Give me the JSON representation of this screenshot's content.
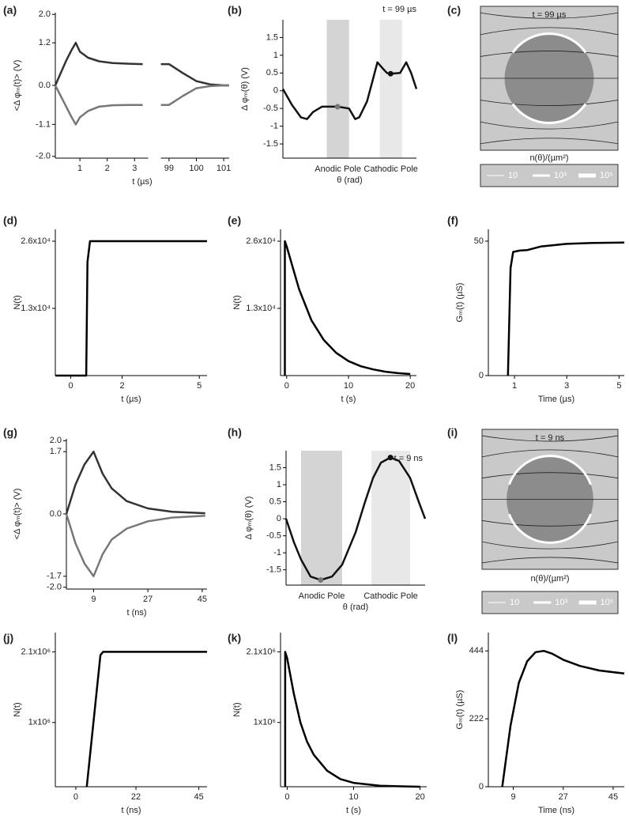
{
  "chart_data": [
    {
      "label": "(a)",
      "type": "line",
      "x": [
        0.1,
        0.3,
        0.5,
        0.7,
        0.85,
        1.0,
        1.3,
        1.7,
        2.2,
        2.8,
        3.3,
        98.7,
        99,
        99.5,
        100,
        100.5,
        101,
        101.2
      ],
      "series": [
        {
          "color": "#333333",
          "values": [
            0,
            0.35,
            0.7,
            1.0,
            1.2,
            0.95,
            0.78,
            0.68,
            0.63,
            0.61,
            0.6,
            0.6,
            0.6,
            0.35,
            0.12,
            0.03,
            0,
            0
          ]
        },
        {
          "color": "#777777",
          "values": [
            0,
            -0.3,
            -0.6,
            -0.9,
            -1.1,
            -0.9,
            -0.72,
            -0.6,
            -0.56,
            -0.55,
            -0.55,
            -0.55,
            -0.55,
            -0.3,
            -0.08,
            -0.02,
            0,
            0
          ]
        }
      ],
      "xlim": [
        [
          0.1,
          3.5
        ],
        [
          98.7,
          101.2
        ]
      ],
      "ylim": [
        -2.05,
        2.05
      ],
      "xticks": [
        1,
        2,
        3,
        99,
        100,
        101
      ],
      "yticks": [
        {
          "value": 2,
          "label": "2.0"
        },
        1.2,
        {
          "value": 0,
          "label": "0.0"
        },
        -1.1,
        {
          "value": -2,
          "label": "-2.0"
        }
      ],
      "xlabel": "t (µs)",
      "ylabel": "<Δ φₘ(t)> (V)"
    },
    {
      "label": "(b)",
      "type": "line",
      "x": [
        0,
        0.43,
        0.85,
        1.14,
        1.42,
        1.84,
        2.58,
        3.12,
        3.41,
        3.6,
        3.97,
        4.26,
        4.46,
        4.68,
        4.91,
        5.08,
        5.53,
        5.82,
        6.05,
        6.3
      ],
      "series": [
        {
          "color": "#111111",
          "values": [
            0.05,
            -0.4,
            -0.75,
            -0.8,
            -0.6,
            -0.45,
            -0.45,
            -0.5,
            -0.8,
            -0.75,
            -0.3,
            0.35,
            0.8,
            0.65,
            0.5,
            0.48,
            0.5,
            0.8,
            0.5,
            0.05
          ]
        }
      ],
      "xlim": [
        0,
        6.3
      ],
      "ylim": [
        -1.9,
        2.0
      ],
      "yticks": [
        1.5,
        1,
        0.5,
        0,
        -0.5,
        -1,
        -1.5
      ],
      "bands": [
        {
          "label": "Anodic Pole",
          "range": [
            2.07,
            3.12
          ],
          "color": "#d4d4d4"
        },
        {
          "label": "Cathodic Pole",
          "range": [
            4.57,
            5.62
          ],
          "color": "#e8e8e8"
        }
      ],
      "markers": [
        {
          "x": 2.58,
          "y": -0.45,
          "color": "#777777"
        },
        {
          "x": 5.08,
          "y": 0.48,
          "color": "#111111"
        }
      ],
      "annotation": "t = 99 µs",
      "xlabel": "θ (rad)",
      "ylabel": "Δ φₘ(θ) (V)"
    },
    {
      "label": "(d)",
      "type": "line",
      "x": [
        -0.6,
        0.6,
        0.65,
        0.75,
        5.3
      ],
      "series": [
        {
          "color": "#000000",
          "values": [
            0,
            0,
            22000,
            26000,
            26000
          ]
        }
      ],
      "xlim": [
        -0.6,
        5.3
      ],
      "ylim": [
        0,
        28300
      ],
      "xticks": [
        0,
        2,
        5
      ],
      "yticks": [
        {
          "value": 26000,
          "label": "2.6x10⁴"
        },
        {
          "value": 13000,
          "label": "1.3x10⁴"
        }
      ],
      "xlabel": "t (µs)",
      "ylabel": "N(t)"
    },
    {
      "label": "(e)",
      "type": "line",
      "x": [
        -0.3,
        -0.3,
        0,
        2,
        4,
        6,
        8,
        10,
        12,
        14,
        16,
        18,
        20
      ],
      "series": [
        {
          "color": "#000000",
          "values": [
            0,
            26000,
            25000,
            16700,
            10700,
            6900,
            4400,
            2800,
            1800,
            1200,
            750,
            480,
            300
          ]
        }
      ],
      "xlim": [
        -1,
        21
      ],
      "ylim": [
        0,
        28300
      ],
      "xticks": [
        0,
        10,
        20
      ],
      "yticks": [
        {
          "value": 26000,
          "label": "2.6x10⁴"
        },
        {
          "value": 13000,
          "label": "1.3x10⁴"
        }
      ],
      "xlabel": "t (s)",
      "ylabel": "N(t)"
    },
    {
      "label": "(f)",
      "type": "line",
      "x": [
        0.75,
        0.85,
        0.95,
        1.2,
        1.5,
        2,
        3,
        4,
        5.2
      ],
      "series": [
        {
          "color": "#000000",
          "values": [
            0,
            40,
            46,
            46.5,
            46.7,
            48,
            49,
            49.3,
            49.5
          ]
        }
      ],
      "xlim": [
        0,
        5.2
      ],
      "ylim": [
        0,
        54.4
      ],
      "xticks": [
        1,
        3,
        5
      ],
      "yticks": [
        0,
        50
      ],
      "xlabel": "Time (µs)",
      "ylabel": "Gₘ(t) (µS)"
    },
    {
      "label": "(g)",
      "type": "line",
      "x": [
        0,
        3,
        6,
        9,
        12,
        15,
        20,
        27,
        35,
        46
      ],
      "series": [
        {
          "color": "#333333",
          "values": [
            0,
            0.8,
            1.35,
            1.7,
            1.1,
            0.7,
            0.35,
            0.15,
            0.06,
            0.02
          ]
        },
        {
          "color": "#777777",
          "values": [
            0,
            -0.8,
            -1.35,
            -1.7,
            -1.1,
            -0.7,
            -0.4,
            -0.2,
            -0.1,
            -0.05
          ]
        }
      ],
      "xlim": [
        0,
        46.6
      ],
      "ylim": [
        -2.05,
        2.05
      ],
      "xticks": [
        9,
        27,
        45
      ],
      "yticks": [
        {
          "value": 2,
          "label": "2.0"
        },
        1.7,
        {
          "value": 0,
          "label": "0.0"
        },
        -1.7,
        {
          "value": -2,
          "label": "-2.0"
        }
      ],
      "xlabel": "t (ns)",
      "ylabel": "<Δ φₘ(t)> (V)"
    },
    {
      "label": "(h)",
      "type": "line",
      "x": [
        0,
        0.36,
        0.68,
        1.11,
        1.57,
        2.08,
        2.54,
        3.15,
        3.58,
        3.94,
        4.3,
        4.73,
        5.12,
        5.62,
        6.01,
        6.3
      ],
      "series": [
        {
          "color": "#111111",
          "values": [
            0,
            -0.7,
            -1.2,
            -1.7,
            -1.8,
            -1.7,
            -1.35,
            -0.4,
            0.5,
            1.2,
            1.65,
            1.8,
            1.7,
            1.2,
            0.5,
            0
          ]
        }
      ],
      "xlim": [
        0,
        6.3
      ],
      "ylim": [
        -1.95,
        2.0
      ],
      "yticks": [
        1.5,
        1,
        0.5,
        0,
        -0.5,
        -1,
        -1.5
      ],
      "bands": [
        {
          "label": "Anodic Pole",
          "range": [
            0.68,
            2.54
          ],
          "color": "#d4d4d4"
        },
        {
          "label": "Cathodic Pole",
          "range": [
            3.87,
            5.62
          ],
          "color": "#e8e8e8"
        }
      ],
      "markers": [
        {
          "x": 1.57,
          "y": -1.8,
          "color": "#777777"
        },
        {
          "x": 4.73,
          "y": 1.8,
          "color": "#111111"
        }
      ],
      "annotation": "t = 9 ns",
      "xlabel": "θ (rad)",
      "ylabel": "Δ φₘ(θ) (V)"
    },
    {
      "label": "(j)",
      "type": "line",
      "x": [
        4,
        9,
        10,
        48
      ],
      "series": [
        {
          "color": "#000000",
          "values": [
            0,
            2050000,
            2100000,
            2100000
          ]
        }
      ],
      "xlim": [
        -7.5,
        48
      ],
      "ylim": [
        0,
        2400000
      ],
      "xticks": [
        0,
        22,
        45
      ],
      "yticks": [
        {
          "value": 2100000,
          "label": "2.1x10⁶"
        },
        {
          "value": 1000000,
          "label": "1x10⁶"
        }
      ],
      "xlabel": "t (ns)",
      "ylabel": "N(t)"
    },
    {
      "label": "(k)",
      "type": "line",
      "x": [
        -0.3,
        -0.3,
        0,
        1,
        2,
        3,
        4,
        6,
        8,
        10,
        14,
        20
      ],
      "series": [
        {
          "color": "#000000",
          "values": [
            0,
            2100000,
            2000000,
            1450000,
            1000000,
            700000,
            500000,
            250000,
            120000,
            60000,
            15000,
            0
          ]
        }
      ],
      "xlim": [
        -1,
        21
      ],
      "ylim": [
        0,
        2400000
      ],
      "xticks": [
        0,
        10,
        20
      ],
      "yticks": [
        {
          "value": 2100000,
          "label": "2.1x10⁶"
        },
        {
          "value": 1000000,
          "label": "1x10⁶"
        }
      ],
      "xlabel": "t (s)",
      "ylabel": "N(t)"
    },
    {
      "label": "(l)",
      "type": "line",
      "x": [
        5,
        8,
        11,
        14,
        17,
        20,
        23,
        27,
        33,
        40,
        49
      ],
      "series": [
        {
          "color": "#000000",
          "values": [
            0,
            200,
            340,
            410,
            440,
            444,
            435,
            415,
            395,
            380,
            370
          ]
        }
      ],
      "xlim": [
        0,
        49
      ],
      "ylim": [
        0,
        504
      ],
      "xticks": [
        9,
        27,
        45
      ],
      "yticks": [
        0,
        222,
        444
      ],
      "xlabel": "Time (ns)",
      "ylabel": "Gₘ(t) (µS)"
    }
  ],
  "diagrams": [
    {
      "label": "(c)",
      "time": "t = 99 µs",
      "caption": "n(θ)/(µm²)",
      "legend": [
        "10",
        "10³",
        "10⁵"
      ]
    },
    {
      "label": "(i)",
      "time": "t = 9 ns",
      "caption": "n(θ)/(µm²)",
      "legend": [
        "10",
        "10³",
        "10⁵"
      ]
    }
  ]
}
